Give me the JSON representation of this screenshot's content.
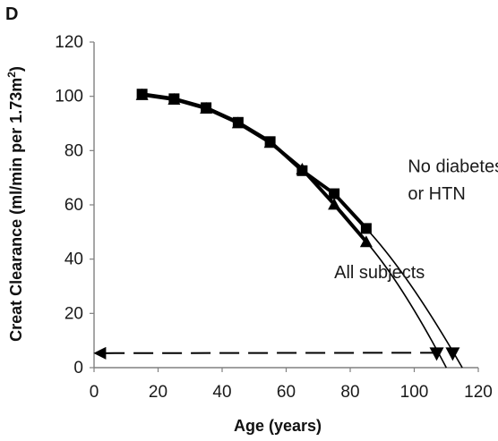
{
  "chart_data": {
    "type": "line",
    "panel_label": "D",
    "title": "",
    "xlabel": "Age (years)",
    "ylabel": "Creat Clearance (ml/min per 1.73m",
    "ylabel_sup": "2",
    "ylabel_close": ")",
    "xlim": [
      0,
      120
    ],
    "ylim": [
      0,
      120
    ],
    "x_ticks": [
      0,
      20,
      40,
      60,
      80,
      100,
      120
    ],
    "y_ticks": [
      0,
      20,
      40,
      60,
      80,
      100,
      120
    ],
    "grid": false,
    "legend": "none",
    "series": [
      {
        "name": "No diabetes or HTN",
        "marker": "square",
        "x": [
          15,
          25,
          35,
          45,
          55,
          65,
          75,
          85
        ],
        "y": [
          100.8,
          99.1,
          95.8,
          90.4,
          83.3,
          72.6,
          64.1,
          51.3
        ],
        "extrapolated_to_zero": 115
      },
      {
        "name": "All subjects",
        "marker": "triangle",
        "x": [
          15,
          25,
          35,
          45,
          55,
          65,
          75,
          85
        ],
        "y": [
          100.6,
          98.9,
          95.6,
          90.2,
          83.0,
          73.2,
          60.2,
          46.4
        ],
        "extrapolated_to_zero": 110
      }
    ],
    "annotations": [
      {
        "text": "No diabetes",
        "x": 98,
        "y": 72,
        "target": "No diabetes or HTN"
      },
      {
        "text": "or HTN",
        "x": 98,
        "y": 62,
        "target": "No diabetes or HTN"
      },
      {
        "text": "All subjects",
        "x": 75,
        "y": 33,
        "target": "All subjects"
      }
    ],
    "arrow": {
      "from_x": 108,
      "to_x": 0,
      "y": 5.5,
      "style": "dashed"
    },
    "down_markers_x": [
      107,
      112
    ],
    "colors": {
      "line": "#000000",
      "text": "#1a1a1a"
    }
  }
}
